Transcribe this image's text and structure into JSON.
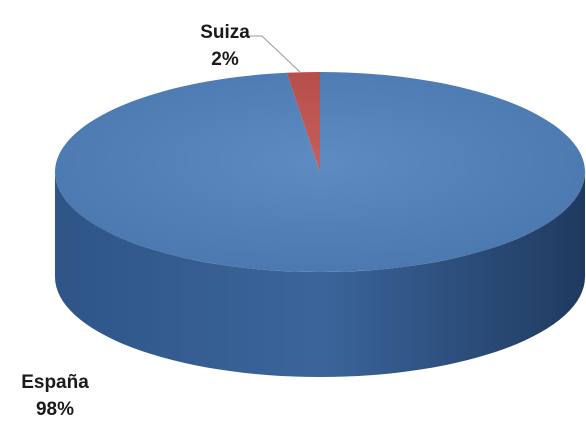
{
  "chart_data": {
    "type": "pie",
    "categories": [
      "España",
      "Suiza"
    ],
    "values": [
      98,
      2
    ],
    "value_labels": [
      "98%",
      "2%"
    ],
    "colors": [
      "#4f81bd",
      "#c0504d"
    ]
  }
}
